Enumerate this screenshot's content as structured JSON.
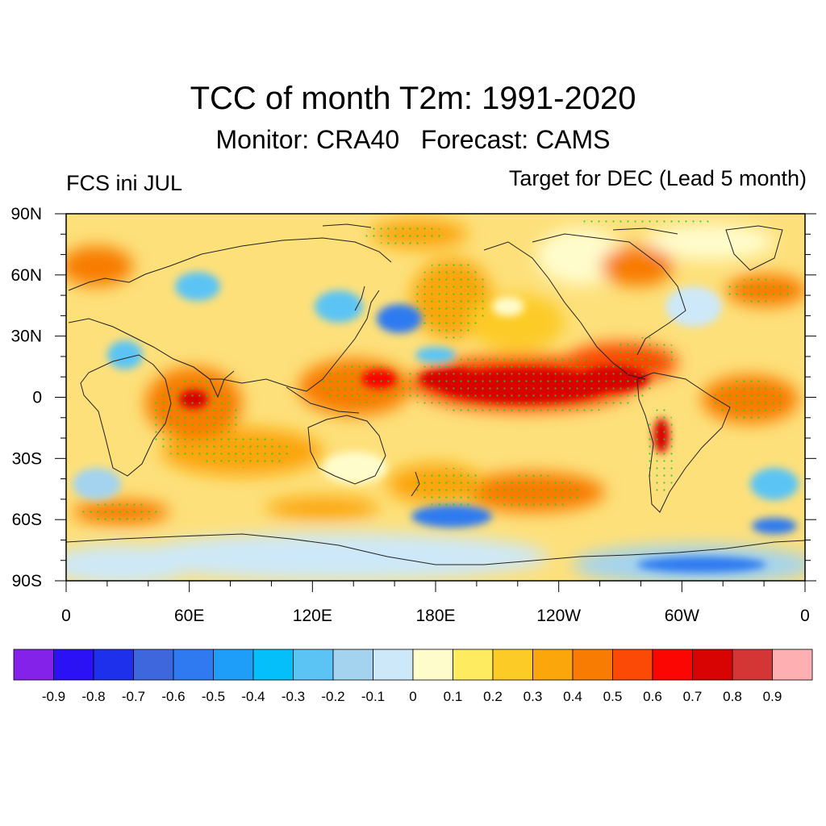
{
  "title": "TCC of month T2m: 1991-2020",
  "subtitle": "Monitor: CRA40   Forecast: CAMS",
  "left_label": "FCS ini JUL",
  "right_label": "Target for DEC (Lead 5 month)",
  "lat_labels": [
    "90N",
    "60N",
    "30N",
    "0",
    "30S",
    "60S",
    "90S"
  ],
  "lon_labels": [
    "0",
    "60E",
    "120E",
    "180E",
    "120W",
    "60W",
    "0"
  ],
  "colorbar": {
    "colors": [
      "#8522ea",
      "#2a12f5",
      "#1e30eb",
      "#3e67de",
      "#2f7af0",
      "#1e9ef8",
      "#04bff9",
      "#5cc4f4",
      "#a3d3ef",
      "#cde8f8",
      "#fffccc",
      "#ffeb5f",
      "#fccb25",
      "#fba60a",
      "#f87b02",
      "#fb4a05",
      "#fc0603",
      "#d80404",
      "#d43535",
      "#feafb2"
    ],
    "labels": [
      "-0.9",
      "-0.8",
      "-0.7",
      "-0.6",
      "-0.5",
      "-0.4",
      "-0.3",
      "-0.2",
      "-0.1",
      "0",
      "0.1",
      "0.2",
      "0.3",
      "0.4",
      "0.5",
      "0.6",
      "0.7",
      "0.8",
      "0.9"
    ]
  },
  "map": {
    "ocean_color": "#fde07a",
    "significance_dot_color": "#1fd11f",
    "coastline_color": "#222222"
  }
}
